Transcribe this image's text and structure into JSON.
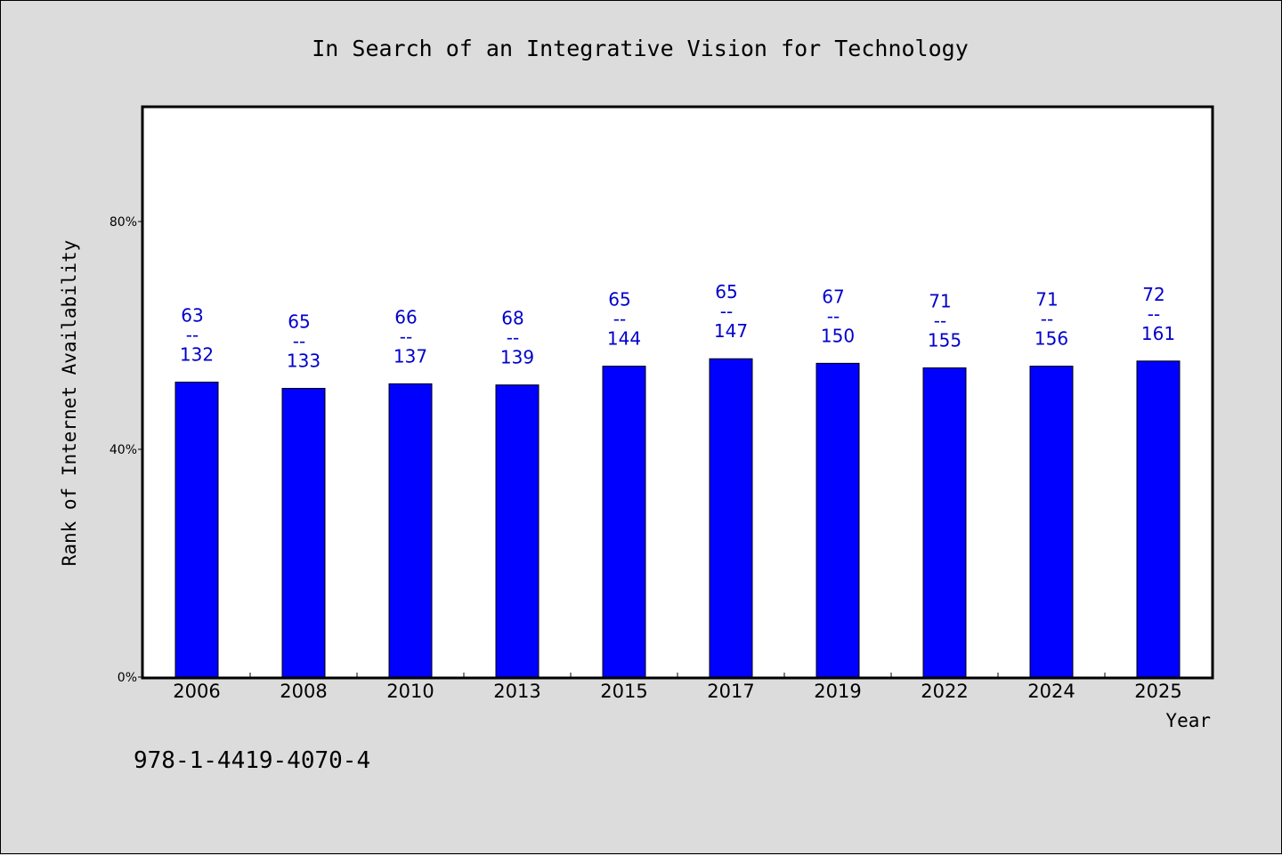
{
  "chart_data": {
    "type": "bar",
    "title": "In Search of an Integrative Vision for Technology",
    "xlabel": "Year",
    "ylabel": "Rank of Internet Availability",
    "ylim": [
      0,
      100
    ],
    "y_ticks": [
      {
        "value": 0,
        "label": "0%"
      },
      {
        "value": 40,
        "label": "40%"
      },
      {
        "value": 80,
        "label": "80%"
      }
    ],
    "categories": [
      "2006",
      "2008",
      "2010",
      "2013",
      "2015",
      "2017",
      "2019",
      "2022",
      "2024",
      "2025"
    ],
    "values": [
      51.8,
      50.7,
      51.5,
      51.3,
      54.6,
      55.9,
      55.1,
      54.3,
      54.6,
      55.5
    ],
    "bar_labels": [
      {
        "top": "63",
        "sep": "--",
        "bottom": "132"
      },
      {
        "top": "65",
        "sep": "--",
        "bottom": "133"
      },
      {
        "top": "66",
        "sep": "--",
        "bottom": "137"
      },
      {
        "top": "68",
        "sep": "--",
        "bottom": "139"
      },
      {
        "top": "65",
        "sep": "--",
        "bottom": "144"
      },
      {
        "top": "65",
        "sep": "--",
        "bottom": "147"
      },
      {
        "top": "67",
        "sep": "--",
        "bottom": "150"
      },
      {
        "top": "71",
        "sep": "--",
        "bottom": "155"
      },
      {
        "top": "71",
        "sep": "--",
        "bottom": "156"
      },
      {
        "top": "72",
        "sep": "--",
        "bottom": "161"
      }
    ],
    "grid": false,
    "legend": "none",
    "bar_color": "#0000ff",
    "label_color": "#0000cc",
    "background_color": "#dcdcdc",
    "plot_background_color": "#ffffff"
  },
  "footer": {
    "isbn": "978-1-4419-4070-4"
  }
}
